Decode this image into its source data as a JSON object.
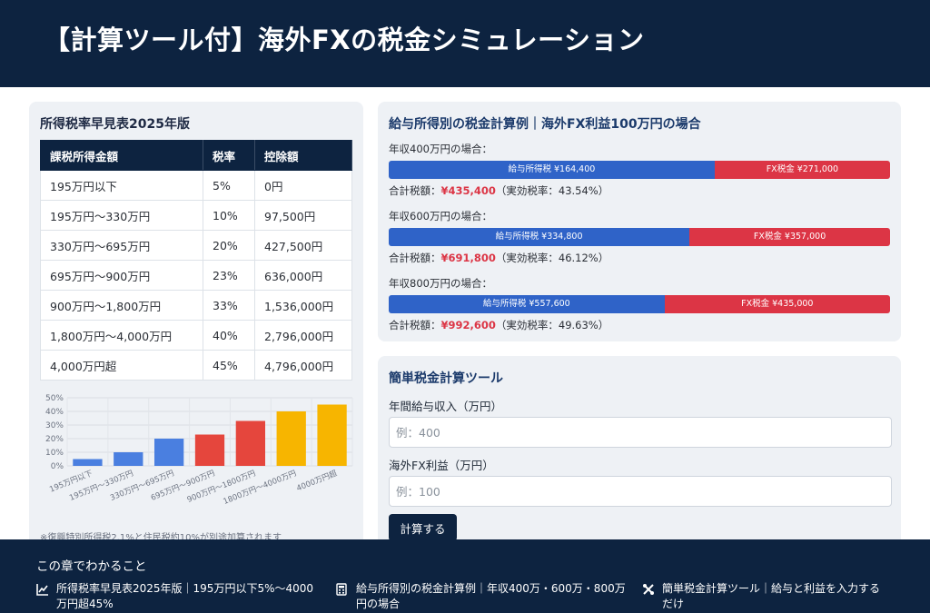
{
  "header": {
    "title": "【計算ツール付】海外FXの税金シミュレーション"
  },
  "rate_table": {
    "title": "所得税率早見表2025年版",
    "columns": [
      "課税所得金額",
      "税率",
      "控除額"
    ],
    "rows": [
      [
        "195万円以下",
        "5%",
        "0円"
      ],
      [
        "195万円〜330万円",
        "10%",
        "97,500円"
      ],
      [
        "330万円〜695万円",
        "20%",
        "427,500円"
      ],
      [
        "695万円〜900万円",
        "23%",
        "636,000円"
      ],
      [
        "900万円〜1,800万円",
        "33%",
        "1,536,000円"
      ],
      [
        "1,800万円〜4,000万円",
        "40%",
        "2,796,000円"
      ],
      [
        "4,000万円超",
        "45%",
        "4,796,000円"
      ]
    ],
    "note": "※復興特別所得税2.1%と住民税約10%が別途加算されます"
  },
  "chart_data": {
    "type": "bar",
    "categories": [
      "195万円以下",
      "195万円〜330万円",
      "330万円〜695万円",
      "695万円〜900万円",
      "900万円〜1800万円",
      "1800万円〜4000万円",
      "4000万円超"
    ],
    "values": [
      5,
      10,
      20,
      23,
      33,
      40,
      45
    ],
    "colors": [
      "#4a7fe0",
      "#4a7fe0",
      "#4a7fe0",
      "#e5463d",
      "#e5463d",
      "#f7b500",
      "#f7b500"
    ],
    "yticks": [
      "0%",
      "10%",
      "20%",
      "30%",
      "40%",
      "50%"
    ],
    "ylim": [
      0,
      50
    ],
    "grid": true
  },
  "examples": {
    "title": "給与所得別の税金計算例｜海外FX利益100万円の場合",
    "colors": {
      "salary": "#2f63c8",
      "fx": "#dc3545"
    },
    "cases": [
      {
        "label": "年収400万円の場合：",
        "salary_bar": "給与所得税 ¥164,400",
        "fx_bar": "FX税金 ¥271,000",
        "salary_share": 0.65,
        "total_prefix": "合計税額：",
        "total_amount": "¥435,400",
        "total_suffix": "（実効税率：43.54%）"
      },
      {
        "label": "年収600万円の場合：",
        "salary_bar": "給与所得税 ¥334,800",
        "fx_bar": "FX税金 ¥357,000",
        "salary_share": 0.6,
        "total_prefix": "合計税額：",
        "total_amount": "¥691,800",
        "total_suffix": "（実効税率：46.12%）"
      },
      {
        "label": "年収800万円の場合：",
        "salary_bar": "給与所得税 ¥557,600",
        "fx_bar": "FX税金 ¥435,000",
        "salary_share": 0.55,
        "total_prefix": "合計税額：",
        "total_amount": "¥992,600",
        "total_suffix": "（実効税率：49.63%）"
      }
    ]
  },
  "calculator": {
    "title": "簡単税金計算ツール",
    "salary_label": "年間給与収入（万円）",
    "salary_placeholder": "例：400",
    "fx_label": "海外FX利益（万円）",
    "fx_placeholder": "例：100",
    "button": "計算する"
  },
  "footer": {
    "title": "この章でわかること",
    "items": [
      {
        "icon": "chart-line-icon",
        "text": "所得税率早見表2025年版｜195万円以下5%〜4000万円超45%"
      },
      {
        "icon": "calculator-icon",
        "text": "給与所得別の税金計算例｜年収400万・600万・800万円の場合"
      },
      {
        "icon": "tools-icon",
        "text": "簡単税金計算ツール｜給与と利益を入力するだけ"
      }
    ]
  }
}
